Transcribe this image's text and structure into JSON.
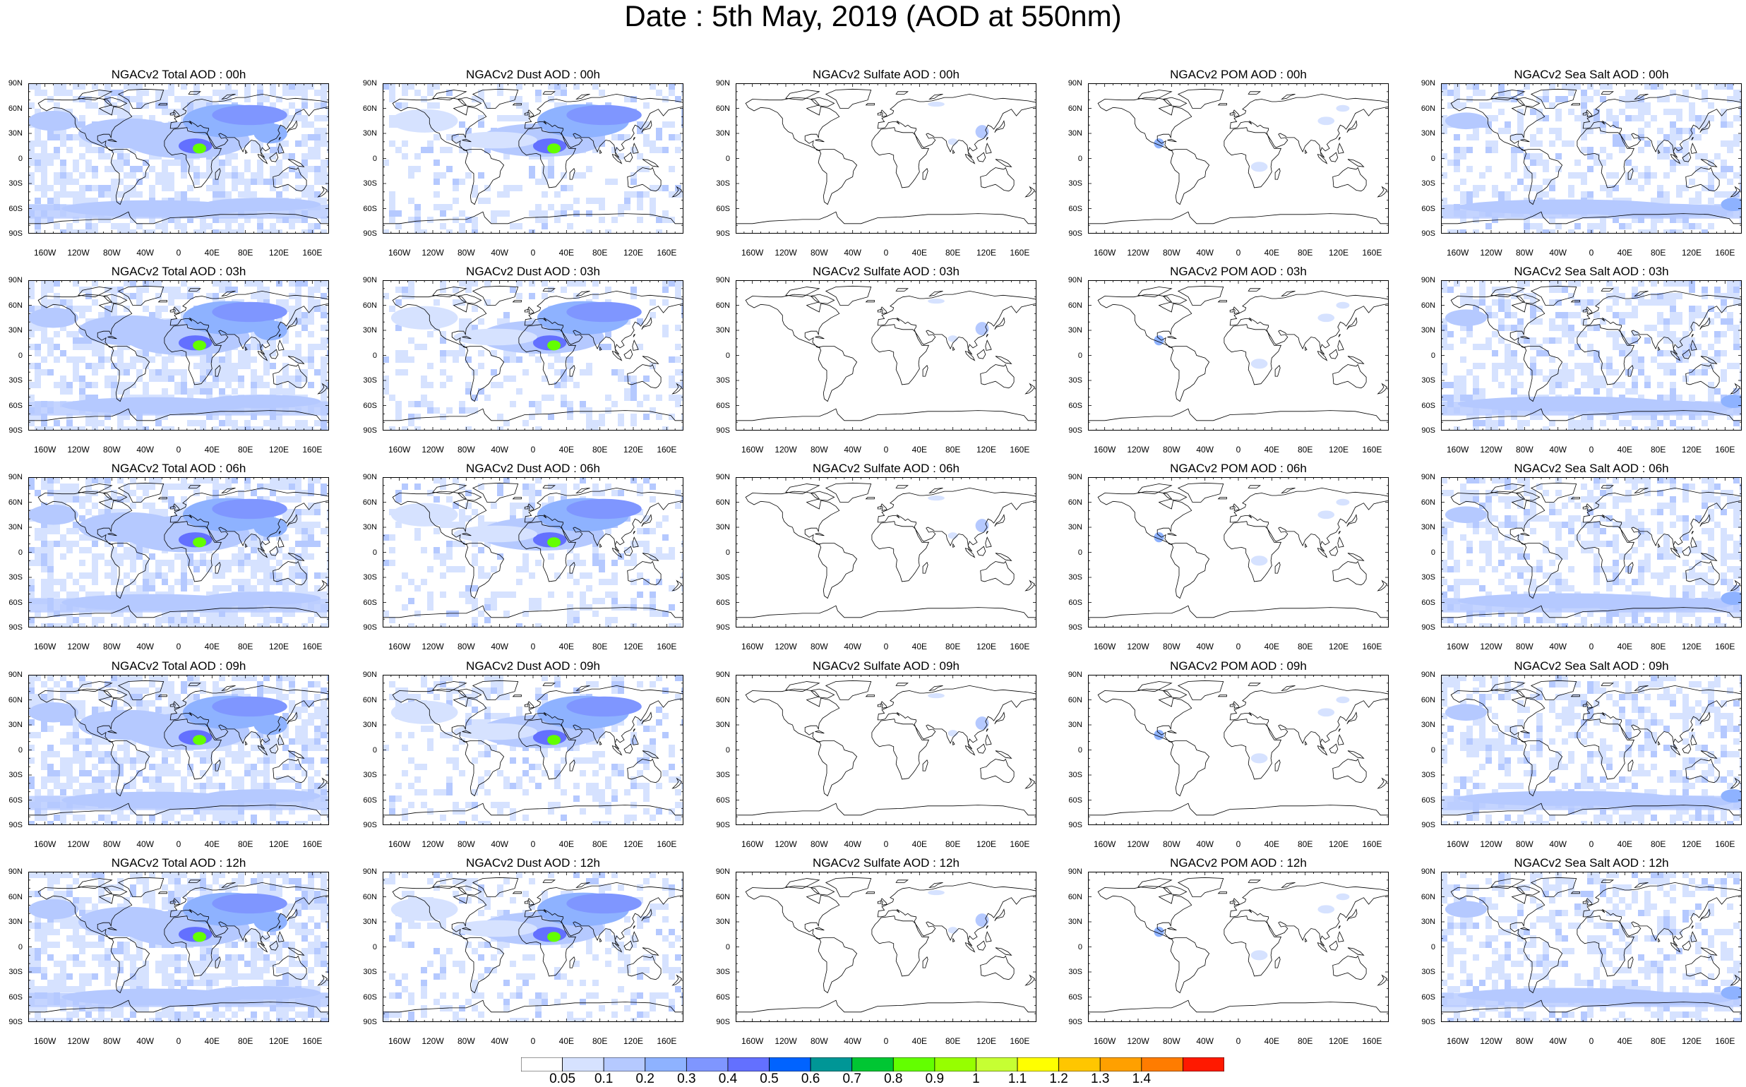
{
  "title": "Date : 5th May, 2019 (AOD at 550nm)",
  "lat_labels": [
    "90N",
    "60N",
    "30N",
    "0",
    "30S",
    "60S",
    "90S"
  ],
  "lon_labels": [
    "160W",
    "120W",
    "80W",
    "40W",
    "0",
    "40E",
    "80E",
    "120E",
    "160E"
  ],
  "panels": [
    [
      {
        "title": "NGACv2 Total AOD : 00h",
        "kind": "total"
      },
      {
        "title": "NGACv2 Dust AOD : 00h",
        "kind": "dust"
      },
      {
        "title": "NGACv2 Sulfate AOD : 00h",
        "kind": "sulfate"
      },
      {
        "title": "NGACv2 POM AOD : 00h",
        "kind": "pom"
      },
      {
        "title": "NGACv2 Sea Salt AOD : 00h",
        "kind": "seasalt"
      }
    ],
    [
      {
        "title": "NGACv2 Total AOD : 03h",
        "kind": "total"
      },
      {
        "title": "NGACv2 Dust AOD : 03h",
        "kind": "dust"
      },
      {
        "title": "NGACv2 Sulfate AOD : 03h",
        "kind": "sulfate"
      },
      {
        "title": "NGACv2 POM AOD : 03h",
        "kind": "pom"
      },
      {
        "title": "NGACv2 Sea Salt AOD : 03h",
        "kind": "seasalt"
      }
    ],
    [
      {
        "title": "NGACv2 Total AOD : 06h",
        "kind": "total"
      },
      {
        "title": "NGACv2 Dust AOD : 06h",
        "kind": "dust"
      },
      {
        "title": "NGACv2 Sulfate AOD : 06h",
        "kind": "sulfate"
      },
      {
        "title": "NGACv2 POM AOD : 06h",
        "kind": "pom"
      },
      {
        "title": "NGACv2 Sea Salt AOD : 06h",
        "kind": "seasalt"
      }
    ],
    [
      {
        "title": "NGACv2 Total AOD : 09h",
        "kind": "total"
      },
      {
        "title": "NGACv2 Dust AOD : 09h",
        "kind": "dust"
      },
      {
        "title": "NGACv2 Sulfate AOD : 09h",
        "kind": "sulfate"
      },
      {
        "title": "NGACv2 POM AOD : 09h",
        "kind": "pom"
      },
      {
        "title": "NGACv2 Sea Salt  AOD : 09h",
        "kind": "seasalt"
      }
    ],
    [
      {
        "title": "NGACv2 Total AOD : 12h",
        "kind": "total"
      },
      {
        "title": "NGACv2 Dust AOD : 12h",
        "kind": "dust"
      },
      {
        "title": "NGACv2 Sulfate AOD : 12h",
        "kind": "sulfate"
      },
      {
        "title": "NGACv2 POM  AOD : 12h",
        "kind": "pom"
      },
      {
        "title": "NGACv2 Sea Salt AOD : 12h",
        "kind": "seasalt"
      }
    ]
  ],
  "colorbar": {
    "colors": [
      "#ffffff",
      "#d6e2ff",
      "#b5c9ff",
      "#8eb2ff",
      "#7f96ff",
      "#6370ff",
      "#0063ff",
      "#009696",
      "#00c633",
      "#63ff00",
      "#96ff00",
      "#c6ff33",
      "#ffff00",
      "#ffc600",
      "#ffa000",
      "#ff7c00",
      "#ff1900"
    ],
    "labels": [
      "0.05",
      "0.1",
      "0.2",
      "0.3",
      "0.4",
      "0.5",
      "0.6",
      "0.7",
      "0.8",
      "0.9",
      "1",
      "1.1",
      "1.2",
      "1.3",
      "1.4"
    ]
  }
}
